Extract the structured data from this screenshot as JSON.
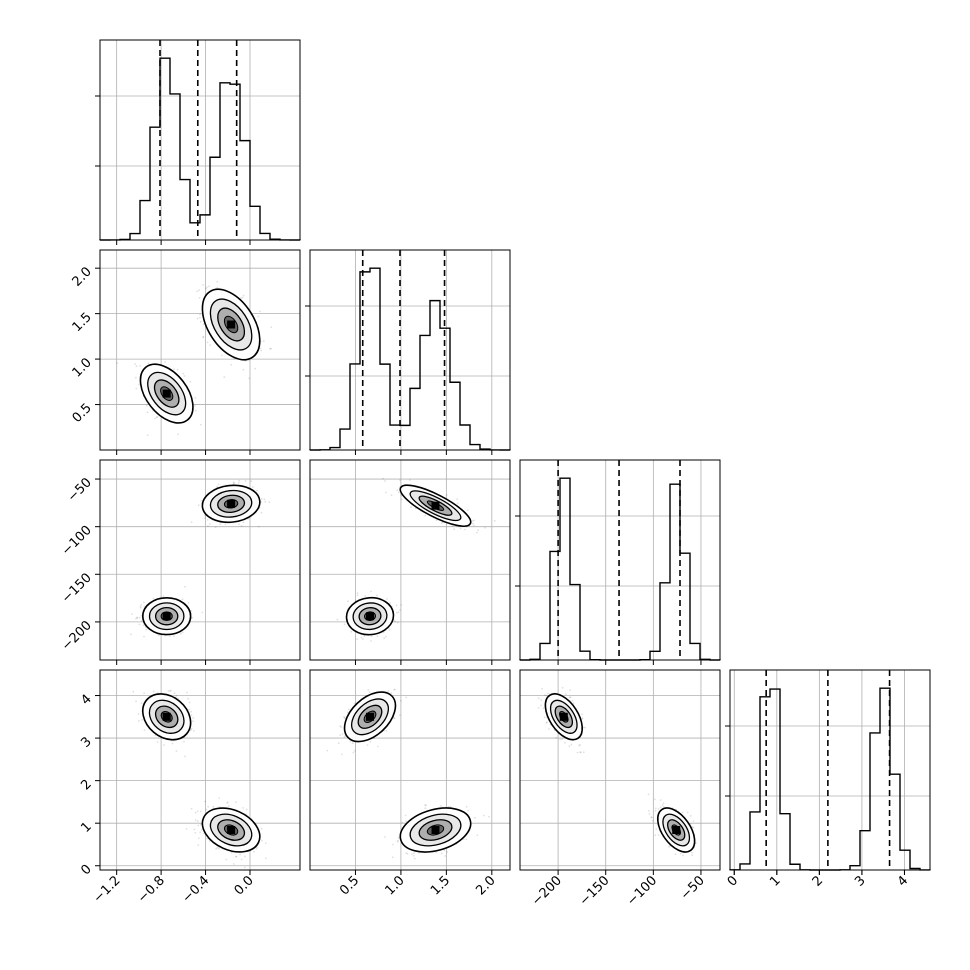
{
  "chart_data": {
    "type": "corner",
    "grid": true,
    "parameters": [
      {
        "range": [
          -1.35,
          0.45
        ],
        "ticks": [
          {
            "value": -1.2,
            "label": "−1.2"
          },
          {
            "value": -0.8,
            "label": "−0.8"
          },
          {
            "value": -0.4,
            "label": "−0.4"
          },
          {
            "value": 0.0,
            "label": "0.0"
          }
        ],
        "modes": [
          {
            "mu": -0.75,
            "sd": 0.11,
            "w": 1.0
          },
          {
            "mu": -0.17,
            "sd": 0.12,
            "w": 1.0
          }
        ],
        "quantiles": [
          -0.81,
          -0.47,
          -0.12
        ]
      },
      {
        "range": [
          0.0,
          2.2
        ],
        "ticks": [
          {
            "value": 0.5,
            "label": "0.5"
          },
          {
            "value": 1.0,
            "label": "1.0"
          },
          {
            "value": 1.5,
            "label": "1.5"
          },
          {
            "value": 2.0,
            "label": "2.0"
          }
        ],
        "modes": [
          {
            "mu": 0.66,
            "sd": 0.13,
            "w": 1.0
          },
          {
            "mu": 1.38,
            "sd": 0.17,
            "w": 1.0
          }
        ],
        "quantiles": [
          0.58,
          0.99,
          1.48
        ]
      },
      {
        "range": [
          -240,
          -30
        ],
        "ticks": [
          {
            "value": -200,
            "label": "−200"
          },
          {
            "value": -150,
            "label": "−150"
          },
          {
            "value": -100,
            "label": "−100"
          },
          {
            "value": -50,
            "label": "−50"
          }
        ],
        "ylabels": [
          {
            "value": -50,
            "label": "−50"
          },
          {
            "value": -100,
            "label": "−100"
          },
          {
            "value": -150,
            "label": "−150"
          },
          {
            "value": -200,
            "label": "−200"
          }
        ],
        "modes": [
          {
            "mu": -194,
            "sd": 9,
            "w": 1.0
          },
          {
            "mu": -76,
            "sd": 9,
            "w": 1.0
          }
        ],
        "quantiles": [
          -200,
          -136,
          -72
        ]
      },
      {
        "range": [
          -0.1,
          4.6
        ],
        "ticks": [
          {
            "value": 0,
            "label": "0"
          },
          {
            "value": 1,
            "label": "1"
          },
          {
            "value": 2,
            "label": "2"
          },
          {
            "value": 3,
            "label": "3"
          },
          {
            "value": 4,
            "label": "4"
          }
        ],
        "modes": [
          {
            "mu": 0.84,
            "sd": 0.22,
            "w": 1.0
          },
          {
            "mu": 3.5,
            "sd": 0.24,
            "w": 1.0
          }
        ],
        "quantiles": [
          0.75,
          2.2,
          3.65
        ]
      }
    ],
    "pair_modes": [
      {
        "pair": [
          0,
          1
        ],
        "blobs": [
          {
            "cx": -0.75,
            "cy": 0.62,
            "sx": 0.11,
            "sy": 0.15,
            "rho": -0.45
          },
          {
            "cx": -0.17,
            "cy": 1.38,
            "sx": 0.12,
            "sy": 0.18,
            "rho": -0.45
          }
        ]
      },
      {
        "pair": [
          0,
          2
        ],
        "blobs": [
          {
            "cx": -0.75,
            "cy": -194,
            "sx": 0.1,
            "sy": 9,
            "rho": 0.0
          },
          {
            "cx": -0.17,
            "cy": -76,
            "sx": 0.12,
            "sy": 9,
            "rho": 0.1
          }
        ]
      },
      {
        "pair": [
          1,
          2
        ],
        "blobs": [
          {
            "cx": 0.66,
            "cy": -194,
            "sx": 0.12,
            "sy": 9,
            "rho": 0.05
          },
          {
            "cx": 1.38,
            "cy": -78,
            "sx": 0.18,
            "sy": 10,
            "rho": -0.8
          }
        ]
      },
      {
        "pair": [
          0,
          3
        ],
        "blobs": [
          {
            "cx": -0.75,
            "cy": 3.5,
            "sx": 0.1,
            "sy": 0.25,
            "rho": -0.25
          },
          {
            "cx": -0.17,
            "cy": 0.84,
            "sx": 0.12,
            "sy": 0.24,
            "rho": -0.3
          }
        ]
      },
      {
        "pair": [
          1,
          3
        ],
        "blobs": [
          {
            "cx": 0.66,
            "cy": 3.5,
            "sx": 0.13,
            "sy": 0.27,
            "rho": 0.45
          },
          {
            "cx": 1.38,
            "cy": 0.84,
            "sx": 0.18,
            "sy": 0.24,
            "rho": 0.3
          }
        ]
      },
      {
        "pair": [
          2,
          3
        ],
        "blobs": [
          {
            "cx": -194,
            "cy": 3.5,
            "sx": 9,
            "sy": 0.25,
            "rho": -0.5
          },
          {
            "cx": -76,
            "cy": 0.84,
            "sx": 9,
            "sy": 0.24,
            "rho": -0.5
          }
        ]
      }
    ]
  }
}
